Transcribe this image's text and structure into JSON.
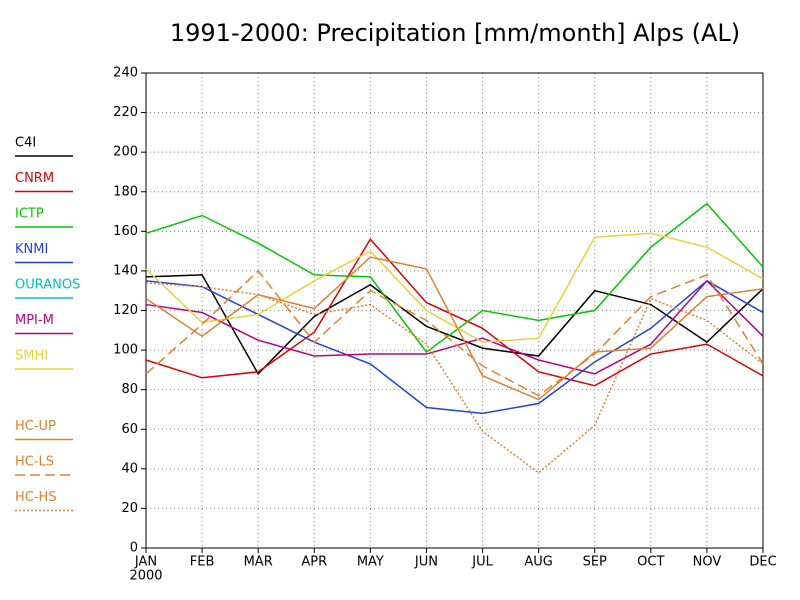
{
  "chart_data": {
    "type": "line",
    "title": "1991-2000: Precipitation [mm/month] Alps (AL)",
    "categories": [
      "JAN",
      "FEB",
      "MAR",
      "APR",
      "MAY",
      "JUN",
      "JUL",
      "AUG",
      "SEP",
      "OCT",
      "NOV",
      "DEC"
    ],
    "year_label": "2000",
    "ylim": [
      0,
      240
    ],
    "yticks": [
      0,
      20,
      40,
      60,
      80,
      100,
      120,
      140,
      160,
      180,
      200,
      220,
      240
    ],
    "grid": true,
    "legend": "left",
    "series": [
      {
        "name": "C4I",
        "color": "#000000",
        "dash": "solid",
        "values": [
          137,
          138,
          88,
          117,
          133,
          112,
          101,
          97,
          130,
          123,
          104,
          131
        ]
      },
      {
        "name": "CNRM",
        "color": "#e00000",
        "dash": "solid",
        "values": [
          95,
          86,
          89,
          109,
          156,
          124,
          111,
          89,
          82,
          98,
          103,
          87
        ]
      },
      {
        "name": "ICTP",
        "color": "#00c800",
        "dash": "solid",
        "values": [
          159,
          168,
          154,
          138,
          137,
          99,
          120,
          115,
          120,
          152,
          174,
          142
        ]
      },
      {
        "name": "KNMI",
        "color": "#2040e0",
        "dash": "solid",
        "values": [
          135,
          132,
          118,
          104,
          93,
          71,
          68,
          73,
          94,
          111,
          135,
          119
        ]
      },
      {
        "name": "OURANOS",
        "color": "#00c0c0",
        "dash": "solid",
        "values": [
          null,
          null,
          null,
          null,
          null,
          null,
          null,
          null,
          null,
          null,
          null,
          null
        ]
      },
      {
        "name": "MPI-M",
        "color": "#c00080",
        "dash": "solid",
        "values": [
          123,
          119,
          105,
          97,
          98,
          98,
          106,
          95,
          88,
          103,
          135,
          107
        ]
      },
      {
        "name": "SMHI",
        "color": "#e6d23c",
        "dash": "solid",
        "values": [
          141,
          114,
          118,
          135,
          150,
          120,
          104,
          106,
          157,
          159,
          152,
          136
        ]
      },
      {
        "name": "HC-UP",
        "color": "#e08030",
        "dash": "solid",
        "values": [
          126,
          107,
          128,
          121,
          147,
          141,
          87,
          75,
          99,
          101,
          127,
          131
        ]
      },
      {
        "name": "HC-LS",
        "color": "#e08030",
        "dash": "dashed",
        "values": [
          88,
          113,
          140,
          104,
          130,
          115,
          92,
          77,
          98,
          127,
          138,
          93
        ]
      },
      {
        "name": "HC-HS",
        "color": "#e08030",
        "dash": "dotted",
        "values": [
          134,
          132,
          128,
          118,
          123,
          103,
          59,
          38,
          62,
          126,
          115,
          93
        ]
      }
    ]
  }
}
